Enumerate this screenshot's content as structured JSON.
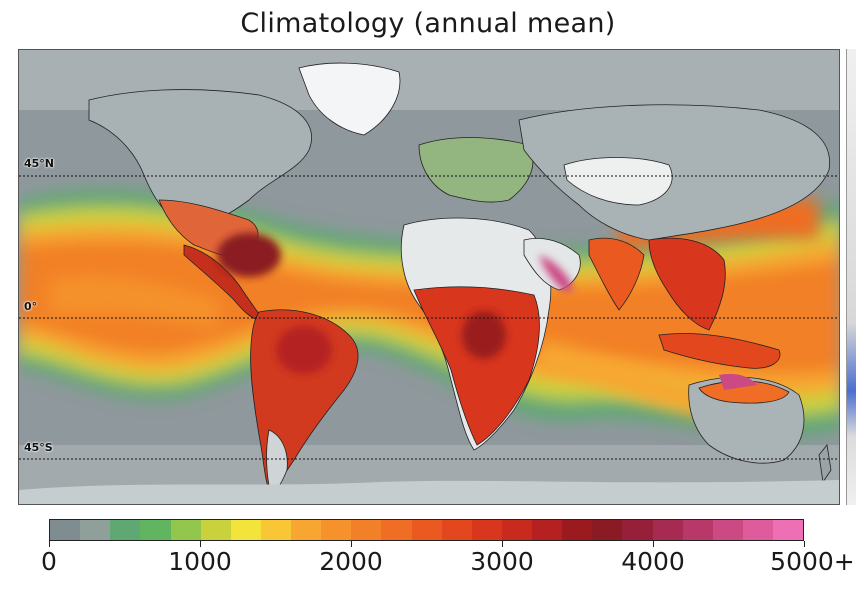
{
  "title": "Climatology (annual mean)",
  "latitude_labels": [
    "45°N",
    "0°",
    "45°S"
  ],
  "colorbar": {
    "ticks": [
      "0",
      "1000",
      "2000",
      "3000",
      "4000",
      "5000+"
    ],
    "tick_values": [
      0,
      1000,
      2000,
      3000,
      4000,
      5000
    ],
    "min": 0,
    "max": 5000,
    "colors": [
      "#7f8c90",
      "#8fa09a",
      "#5fa874",
      "#62b560",
      "#93c64c",
      "#c9d23c",
      "#f2e43a",
      "#f9c636",
      "#f7a731",
      "#f5922c",
      "#f28028",
      "#ef6d24",
      "#ea5a20",
      "#e3471e",
      "#d8361d",
      "#c92a1e",
      "#b52020",
      "#9a1a1e",
      "#8a1a24",
      "#96203a",
      "#a52b52",
      "#b8386a",
      "#cc4a84",
      "#de5c9c",
      "#ee70b4"
    ]
  },
  "colors": {
    "ocean_dry": "#8e979b",
    "ocean_moist": "#5fa874",
    "wet": "#f5922c",
    "very_wet": "#d8361d",
    "extreme": "#8a1a24",
    "peak": "#d04c8c",
    "desert": "#e4e7e8"
  }
}
